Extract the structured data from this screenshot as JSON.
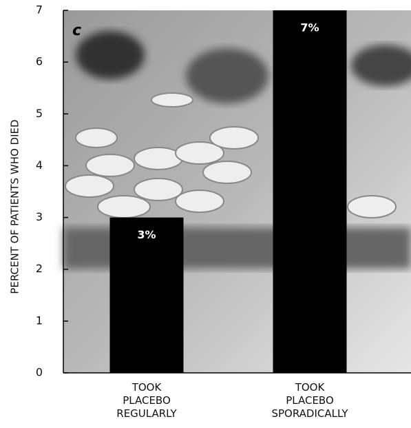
{
  "chart_data": {
    "type": "bar",
    "panel_label": "c",
    "ylabel": "PERCENT OF PATIENTS WHO DIED",
    "categories": [
      "TOOK PLACEBO REGULARLY",
      "TOOK PLACEBO SPORADICALLY"
    ],
    "values": [
      3,
      7
    ],
    "value_labels": [
      "3%",
      "7%"
    ],
    "color": "#000000",
    "ylim": [
      0,
      7
    ],
    "yticks": [
      0,
      1,
      2,
      3,
      4,
      5,
      6,
      7
    ]
  }
}
